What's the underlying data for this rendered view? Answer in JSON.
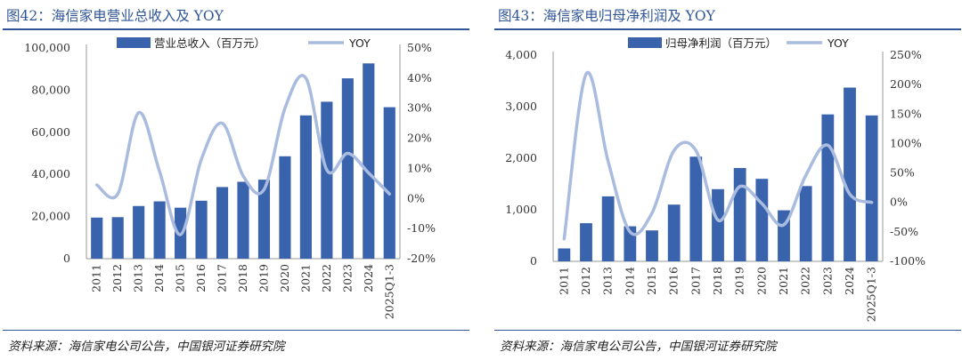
{
  "colors": {
    "bar": "#3a63ad",
    "line": "#a9bcdf",
    "accent": "#2f5597"
  },
  "chart_data": [
    {
      "type": "bar+line",
      "title": "图42：海信家电营业总收入及 YOY",
      "categories": [
        "2011",
        "2012",
        "2013",
        "2014",
        "2015",
        "2016",
        "2017",
        "2018",
        "2019",
        "2020",
        "2021",
        "2022",
        "2023",
        "2024",
        "2025Q1-3"
      ],
      "series": [
        {
          "name": "营业总收入（百万元）",
          "kind": "bar",
          "axis": "left",
          "values": [
            19500,
            19700,
            25000,
            27200,
            24200,
            27500,
            34000,
            36500,
            37500,
            48600,
            68000,
            74500,
            85600,
            92700,
            71900
          ]
        },
        {
          "name": "YOY",
          "kind": "line",
          "axis": "right",
          "values": [
            4.5,
            1.5,
            28.5,
            9,
            -12,
            13,
            25,
            7.5,
            3,
            30,
            40,
            9.5,
            15,
            8.5,
            1.5
          ]
        }
      ],
      "left_axis": {
        "ylim": [
          0,
          100000
        ],
        "ticks": [
          "0",
          "20,000",
          "40,000",
          "60,000",
          "80,000",
          "100,000"
        ]
      },
      "right_axis": {
        "ylim": [
          -20,
          50
        ],
        "ticks": [
          "-20%",
          "-10%",
          "0%",
          "10%",
          "20%",
          "30%",
          "40%",
          "50%"
        ]
      },
      "source": "资料来源：海信家电公司公告，中国银河证券研究院"
    },
    {
      "type": "bar+line",
      "title": "图43：海信家电归母净利润及 YOY",
      "categories": [
        "2011",
        "2012",
        "2013",
        "2014",
        "2015",
        "2016",
        "2017",
        "2018",
        "2019",
        "2020",
        "2021",
        "2022",
        "2023",
        "2024",
        "2025Q1-3"
      ],
      "series": [
        {
          "name": "归母净利润（百万元）",
          "kind": "bar",
          "axis": "left",
          "values": [
            250,
            740,
            1260,
            680,
            600,
            1100,
            2030,
            1400,
            1810,
            1600,
            990,
            1460,
            2850,
            3370,
            2830
          ]
        },
        {
          "name": "YOY",
          "kind": "line",
          "axis": "right",
          "values": [
            -62,
            218,
            70,
            -50,
            -18,
            88,
            88,
            -30,
            27,
            -2,
            -38,
            46,
            97,
            14,
            0
          ]
        }
      ],
      "left_axis": {
        "ylim": [
          0,
          4000
        ],
        "ticks": [
          "0",
          "1,000",
          "2,000",
          "3,000",
          "4,000"
        ]
      },
      "right_axis": {
        "ylim": [
          -100,
          250
        ],
        "ticks": [
          "-100%",
          "-50%",
          "0%",
          "50%",
          "100%",
          "150%",
          "200%",
          "250%"
        ]
      },
      "source": "资料来源：海信家电公司公告，中国银河证券研究院"
    }
  ]
}
